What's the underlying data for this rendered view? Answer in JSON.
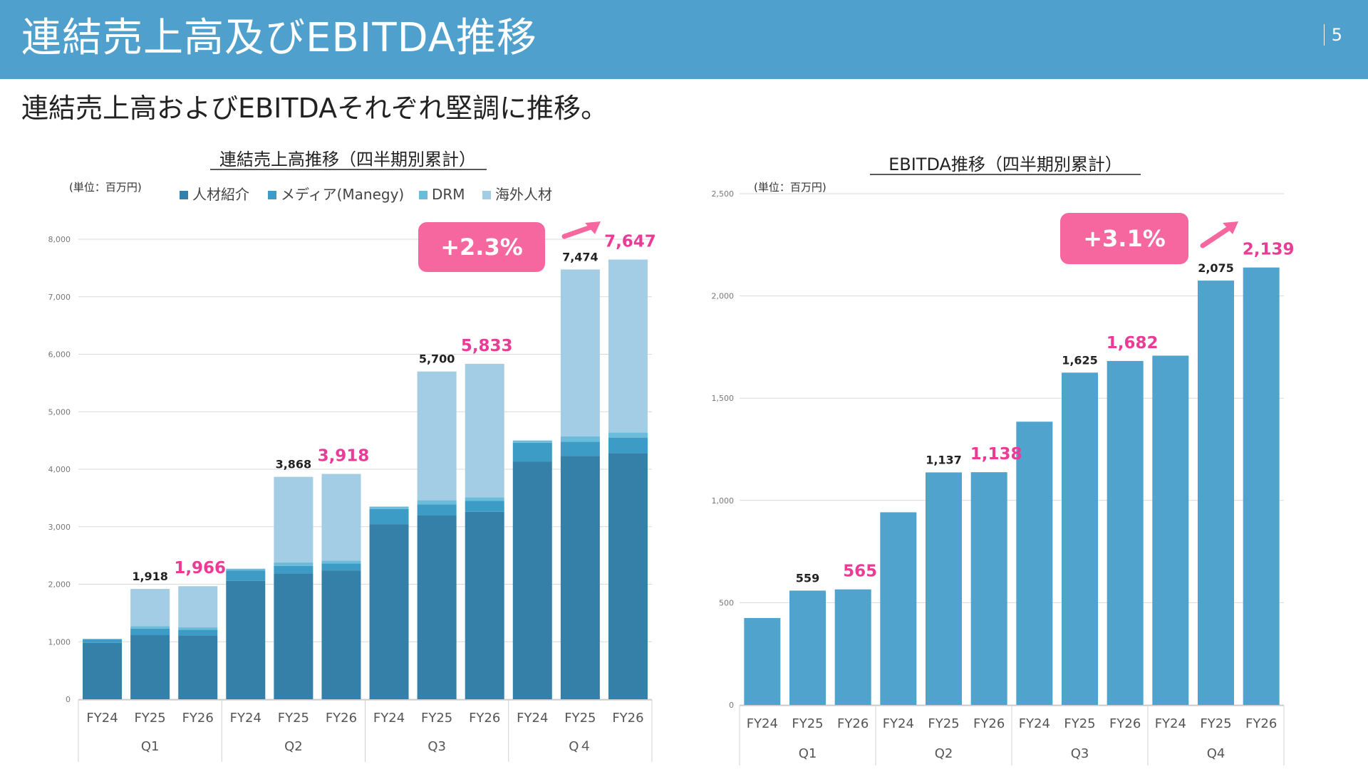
{
  "header": {
    "title": "連結売上高及びEBITDA推移",
    "page_number": "5"
  },
  "subtitle": "連結売上高およびEBITDAそれぞれ堅調に推移。",
  "colors": {
    "header_bg": "#4fa0cd",
    "jinzai": "#3580a8",
    "media": "#3d9cc6",
    "drm": "#6bbcdb",
    "kaigai": "#a3cde4",
    "ebitda": "#4fa3cd",
    "highlight": "#ea3c96",
    "badge": "#f7679f"
  },
  "chart_data": [
    {
      "type": "bar",
      "stacked": true,
      "title": "連結売上高推移（四半期別累計）",
      "unit_label": "(単位：百万円)",
      "categories": [
        "FY24",
        "FY25",
        "FY26",
        "FY24",
        "FY25",
        "FY26",
        "FY24",
        "FY25",
        "FY26",
        "FY24",
        "FY25",
        "FY26"
      ],
      "groups": [
        "Q1",
        "Q2",
        "Q3",
        "Q４"
      ],
      "legend": [
        "人材紹介",
        "メディア(Manegy)",
        "DRM",
        "海外人材"
      ],
      "series": [
        {
          "name": "人材紹介",
          "values": [
            980,
            1120,
            1110,
            2060,
            2190,
            2240,
            3040,
            3200,
            3260,
            4130,
            4230,
            4280
          ]
        },
        {
          "name": "メディア(Manegy)",
          "values": [
            60,
            110,
            100,
            180,
            130,
            120,
            270,
            190,
            190,
            330,
            250,
            270
          ]
        },
        {
          "name": "DRM",
          "values": [
            10,
            40,
            40,
            30,
            60,
            50,
            40,
            70,
            60,
            40,
            90,
            90
          ]
        },
        {
          "name": "海外人材",
          "values": [
            0,
            648,
            716,
            0,
            1488,
            1508,
            0,
            2240,
            2323,
            0,
            2904,
            3007
          ]
        }
      ],
      "totals_labels": [
        "",
        "1,918",
        "1,966",
        "",
        "3,868",
        "3,918",
        "",
        "5,700",
        "5,833",
        "",
        "7,474",
        "7,647"
      ],
      "highlight_labels": [
        false,
        false,
        true,
        false,
        false,
        true,
        false,
        false,
        true,
        false,
        false,
        true
      ],
      "yticks": [
        "0",
        "1,000",
        "2,000",
        "3,000",
        "4,000",
        "5,000",
        "6,000",
        "7,000",
        "8,000"
      ],
      "ylim": [
        0,
        8000
      ],
      "badge": "+2.3%",
      "grid": true
    },
    {
      "type": "bar",
      "title": "EBITDA推移（四半期別累計）",
      "unit_label": "(単位：百万円)",
      "categories": [
        "FY24",
        "FY25",
        "FY26",
        "FY24",
        "FY25",
        "FY26",
        "FY24",
        "FY25",
        "FY26",
        "FY24",
        "FY25",
        "FY26"
      ],
      "groups": [
        "Q1",
        "Q2",
        "Q3",
        "Q4"
      ],
      "values": [
        425,
        559,
        565,
        942,
        1137,
        1138,
        1385,
        1625,
        1682,
        1708,
        2075,
        2139
      ],
      "value_labels": [
        "",
        "559",
        "565",
        "",
        "1,137",
        "1,138",
        "",
        "1,625",
        "1,682",
        "",
        "2,075",
        "2,139"
      ],
      "highlight_labels": [
        false,
        false,
        true,
        false,
        false,
        true,
        false,
        false,
        true,
        false,
        false,
        true
      ],
      "yticks": [
        "0",
        "500",
        "1,000",
        "1,500",
        "2,000",
        "2,500"
      ],
      "ylim": [
        0,
        2500
      ],
      "badge": "+3.1%",
      "grid": true
    }
  ]
}
